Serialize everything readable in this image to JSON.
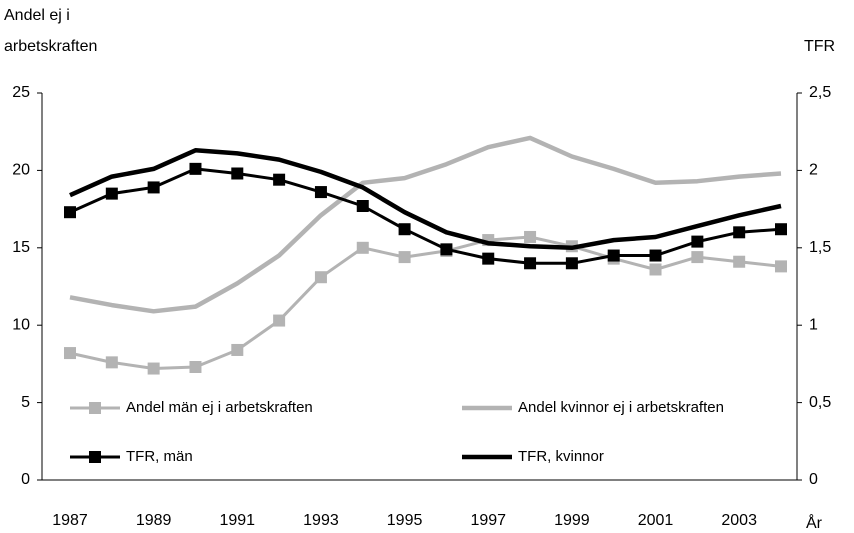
{
  "chart_data": {
    "type": "line",
    "ylabel": [
      "Andel ej i",
      "arbetskraften"
    ],
    "y2label": "TFR",
    "xlabel": "År",
    "categories": [
      "1987",
      null,
      "1989",
      null,
      "1991",
      null,
      "1993",
      null,
      "1995",
      null,
      "1997",
      null,
      "1999",
      null,
      "2001",
      null,
      "2003",
      null
    ],
    "ylim": [
      0,
      25
    ],
    "yticks": [
      0,
      5,
      10,
      15,
      20,
      25
    ],
    "y2lim": [
      0,
      2.5
    ],
    "y2ticks": [
      0,
      {
        "value": 0.5,
        "label": "0,5"
      },
      1,
      {
        "value": 1.5,
        "label": "1,5"
      },
      2,
      {
        "value": 2.5,
        "label": "2,5"
      }
    ],
    "grid": false,
    "series": [
      {
        "name": "Andel män ej i arbetskraften",
        "color": "#b3b3b3",
        "marker": "square",
        "values": [
          8.2,
          7.6,
          7.2,
          7.3,
          8.4,
          10.3,
          13.1,
          15.0,
          14.4,
          14.8,
          15.5,
          15.7,
          15.1,
          14.3,
          13.6,
          14.4,
          14.1,
          13.8
        ]
      },
      {
        "name": "Andel kvinnor ej i arbetskraften",
        "color": "#b3b3b3",
        "marker": "none",
        "values": [
          11.8,
          11.3,
          10.9,
          11.2,
          12.7,
          14.5,
          17.1,
          19.2,
          19.5,
          20.4,
          21.5,
          22.1,
          20.9,
          20.1,
          19.2,
          19.3,
          19.6,
          19.8
        ]
      },
      {
        "name": "TFR, män",
        "color": "#000000",
        "marker": "square",
        "axis": "y2",
        "values": [
          1.73,
          1.85,
          1.89,
          2.01,
          1.98,
          1.94,
          1.86,
          1.77,
          1.62,
          1.49,
          1.43,
          1.4,
          1.4,
          1.45,
          1.45,
          1.54,
          1.6,
          1.62
        ]
      },
      {
        "name": "TFR, kvinnor",
        "color": "#000000",
        "marker": "none",
        "axis": "y2",
        "values": [
          1.84,
          1.96,
          2.01,
          2.13,
          2.11,
          2.07,
          1.99,
          1.89,
          1.73,
          1.6,
          1.53,
          1.51,
          1.5,
          1.55,
          1.57,
          1.64,
          1.71,
          1.77
        ]
      }
    ]
  }
}
